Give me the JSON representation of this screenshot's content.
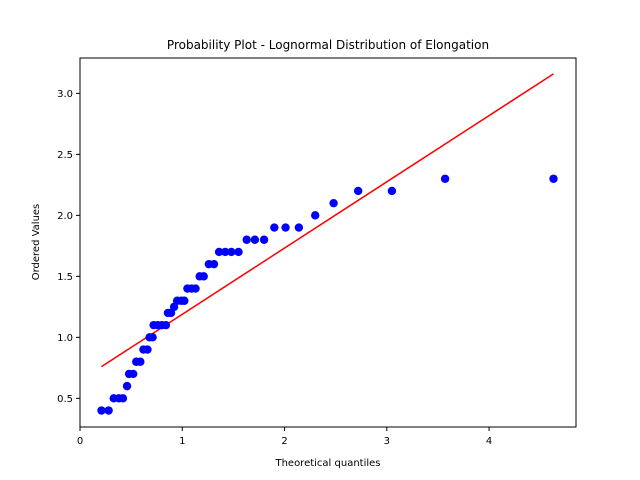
{
  "chart_data": {
    "type": "scatter",
    "title": "Probability Plot - Lognormal Distribution of Elongation",
    "xlabel": "Theoretical quantiles",
    "ylabel": "Ordered Values",
    "xlim": [
      0,
      4.85
    ],
    "ylim": [
      0.265,
      3.29
    ],
    "xticks": [
      0,
      1,
      2,
      3,
      4
    ],
    "yticks": [
      0.5,
      1.0,
      1.5,
      2.0,
      2.5,
      3.0
    ],
    "xtick_labels": [
      "0",
      "1",
      "2",
      "3",
      "4"
    ],
    "ytick_labels": [
      "0.5",
      "1.0",
      "1.5",
      "2.0",
      "2.5",
      "3.0"
    ],
    "grid": false,
    "point_color": "#0000ff",
    "line_color": "#ff0000",
    "fit_line": {
      "x": [
        0.21,
        4.63
      ],
      "y": [
        0.76,
        3.16
      ]
    },
    "points": [
      [
        0.21,
        0.4
      ],
      [
        0.28,
        0.4
      ],
      [
        0.33,
        0.5
      ],
      [
        0.38,
        0.5
      ],
      [
        0.42,
        0.5
      ],
      [
        0.46,
        0.6
      ],
      [
        0.48,
        0.7
      ],
      [
        0.52,
        0.7
      ],
      [
        0.55,
        0.8
      ],
      [
        0.59,
        0.8
      ],
      [
        0.62,
        0.9
      ],
      [
        0.66,
        0.9
      ],
      [
        0.68,
        1.0
      ],
      [
        0.71,
        1.0
      ],
      [
        0.72,
        1.1
      ],
      [
        0.76,
        1.1
      ],
      [
        0.8,
        1.1
      ],
      [
        0.84,
        1.1
      ],
      [
        0.86,
        1.2
      ],
      [
        0.89,
        1.2
      ],
      [
        0.92,
        1.25
      ],
      [
        0.95,
        1.3
      ],
      [
        0.99,
        1.3
      ],
      [
        1.02,
        1.3
      ],
      [
        1.05,
        1.4
      ],
      [
        1.09,
        1.4
      ],
      [
        1.13,
        1.4
      ],
      [
        1.17,
        1.5
      ],
      [
        1.21,
        1.5
      ],
      [
        1.26,
        1.6
      ],
      [
        1.31,
        1.6
      ],
      [
        1.36,
        1.7
      ],
      [
        1.42,
        1.7
      ],
      [
        1.48,
        1.7
      ],
      [
        1.55,
        1.7
      ],
      [
        1.63,
        1.8
      ],
      [
        1.71,
        1.8
      ],
      [
        1.8,
        1.8
      ],
      [
        1.9,
        1.9
      ],
      [
        2.01,
        1.9
      ],
      [
        2.14,
        1.9
      ],
      [
        2.3,
        2.0
      ],
      [
        2.48,
        2.1
      ],
      [
        2.72,
        2.2
      ],
      [
        3.05,
        2.2
      ],
      [
        3.57,
        2.3
      ],
      [
        4.63,
        2.3
      ]
    ]
  }
}
